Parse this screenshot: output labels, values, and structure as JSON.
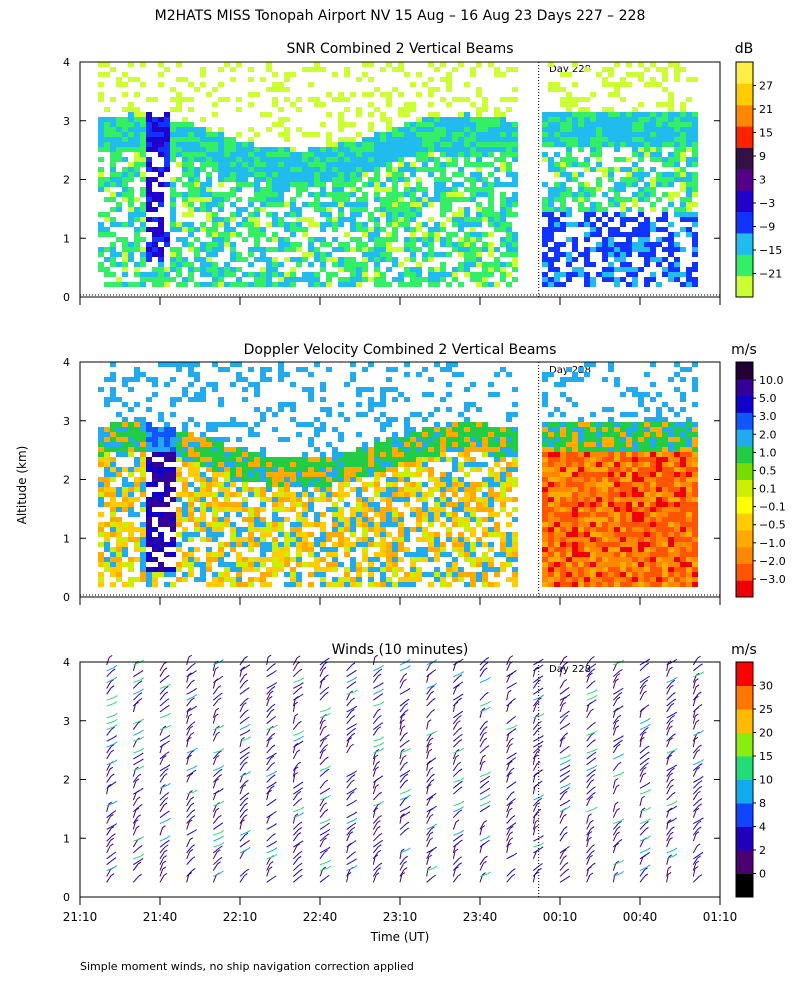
{
  "title": "M2HATS MISS Tonopah Airport NV  15 Aug – 16 Aug 23 Days 227 – 228",
  "ylabel": "Altitude (km)",
  "xlabel": "Time (UT)",
  "footnote": "Simple moment winds, no ship navigation correction applied",
  "x_ticks": [
    "21:10",
    "21:40",
    "22:10",
    "22:40",
    "23:10",
    "23:40",
    "00:10",
    "00:40",
    "01:10"
  ],
  "y_ticks": [
    "0",
    "1",
    "2",
    "3",
    "4"
  ],
  "day_marker": "Day 228",
  "colors": {
    "missing": "#ffffff",
    "black": "#000000"
  },
  "chart_data": [
    {
      "type": "heatmap",
      "title": "SNR Combined 2 Vertical Beams",
      "xlabel": "Time (UT)",
      "ylabel": "Altitude (km)",
      "ylim": [
        0,
        4
      ],
      "xlim": [
        "21:10",
        "01:10"
      ],
      "colorbar": {
        "unit": "dB",
        "ticks": [
          "27",
          "21",
          "15",
          "9",
          "3",
          "−3",
          "−9",
          "−15",
          "−21"
        ],
        "colors": [
          "#ccff33",
          "#33ee66",
          "#22bbee",
          "#1133ff",
          "#2200cc",
          "#550088",
          "#331144",
          "#ff2200",
          "#ff8800",
          "#ffcc00",
          "#ffee44"
        ]
      },
      "features": [
        {
          "description": "layer",
          "time_start": "21:15",
          "time_end": "23:53",
          "altitude_km": [
            2.2,
            2.8
          ],
          "dB": -9
        },
        {
          "description": "strong plume",
          "time_start": "21:35",
          "time_end": "21:42",
          "altitude_km": [
            0.5,
            3.2
          ],
          "dB": 3
        },
        {
          "description": "layer",
          "time_start": "00:05",
          "time_end": "01:00",
          "altitude_km": [
            2.6,
            3.0
          ],
          "dB": -9
        }
      ]
    },
    {
      "type": "heatmap",
      "title": "Doppler Velocity Combined 2 Vertical Beams",
      "xlabel": "Time (UT)",
      "ylabel": "Altitude (km)",
      "ylim": [
        0,
        4
      ],
      "xlim": [
        "21:10",
        "01:10"
      ],
      "colorbar": {
        "unit": "m/s",
        "ticks": [
          "10.0",
          "5.0",
          "3.0",
          "2.0",
          "1.0",
          "0.5",
          "0.1",
          "−0.1",
          "−0.5",
          "−1.0",
          "−2.0",
          "−3.0"
        ],
        "colors": [
          "#ee0000",
          "#ff5500",
          "#ff8800",
          "#ffaa00",
          "#ffcc00",
          "#ffff00",
          "#ccee00",
          "#77dd00",
          "#22cc44",
          "#22aaee",
          "#1155ff",
          "#1100cc",
          "#330099",
          "#220033"
        ]
      },
      "features": [
        {
          "description": "updraft",
          "time_start": "21:35",
          "time_end": "21:45",
          "altitude_km": [
            0.5,
            4.0
          ],
          "m_per_s": 5.0
        },
        {
          "description": "downdraft",
          "time_start": "00:05",
          "time_end": "01:10",
          "altitude_km": [
            0.2,
            2.0
          ],
          "m_per_s": -2.0
        }
      ]
    },
    {
      "type": "scatter",
      "title": "Winds (10 minutes)",
      "xlabel": "Time (UT)",
      "ylabel": "Altitude (km)",
      "ylim": [
        0,
        4
      ],
      "xlim": [
        "21:10",
        "01:10"
      ],
      "colorbar": {
        "unit": "m/s",
        "ticks": [
          "30",
          "25",
          "20",
          "15",
          "10",
          "8",
          "4",
          "2",
          "0"
        ],
        "colors": [
          "#000000",
          "#4a0070",
          "#2200bb",
          "#1144ff",
          "#11aaee",
          "#22dd77",
          "#88ee11",
          "#ffbb00",
          "#ff7700",
          "#ff0000"
        ]
      },
      "profile_times": [
        "21:20",
        "21:30",
        "21:40",
        "21:50",
        "22:00",
        "22:10",
        "22:20",
        "22:30",
        "22:40",
        "22:50",
        "23:00",
        "23:10",
        "23:20",
        "23:30",
        "23:40",
        "23:50",
        "00:00",
        "00:10",
        "00:20",
        "00:30",
        "00:40",
        "00:50",
        "01:00"
      ],
      "altitude_km": [
        0.25,
        4.0
      ],
      "dominant_speed_m_per_s": [
        4,
        8
      ]
    }
  ]
}
